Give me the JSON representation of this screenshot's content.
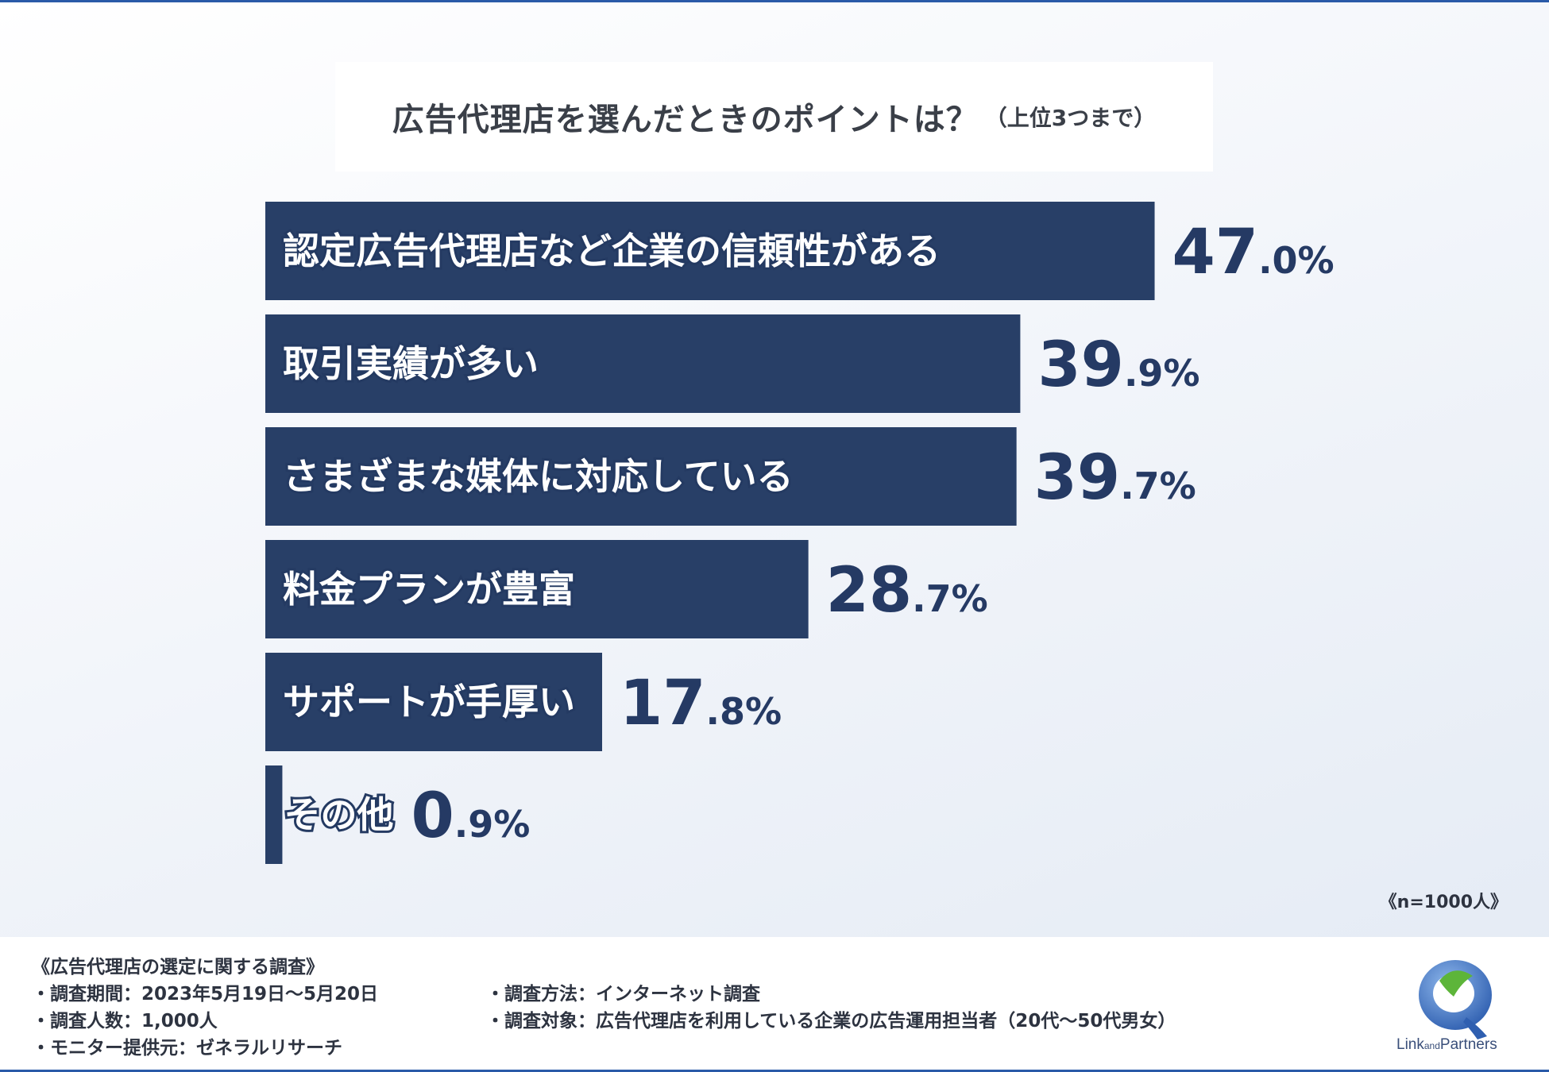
{
  "title": {
    "main": "広告代理店を選んだときのポイントは？",
    "sub": "（上位3つまで）"
  },
  "sample_note": "《n=1000人》",
  "colors": {
    "bar": "#283f67",
    "value_text": "#253a64",
    "accent_line": "#2a5aa8"
  },
  "chart_data": {
    "type": "bar",
    "orientation": "horizontal",
    "categories": [
      "認定広告代理店など企業の信頼性がある",
      "取引実績が多い",
      "さまざまな媒体に対応している",
      "料金プランが豊富",
      "サポートが手厚い",
      "その他"
    ],
    "values": [
      47.0,
      39.9,
      39.7,
      28.7,
      17.8,
      0.9
    ],
    "value_labels": [
      "47.0%",
      "39.9%",
      "39.7%",
      "28.7%",
      "17.8%",
      "0.9%"
    ],
    "unit": "%",
    "xlim": [
      0,
      100
    ],
    "grid": false,
    "legend": "none"
  },
  "footer": {
    "survey_title": "《広告代理店の選定に関する調査》",
    "period": "・調査期間：2023年5月19日～5月20日",
    "respondents": "・調査人数：1,000人",
    "provider": "・モニター提供元：ゼネラルリサーチ",
    "method": "・調査方法：インターネット調査",
    "target": "・調査対象：広告代理店を利用している企業の広告運用担当者（20代～50代男女）"
  },
  "logo": {
    "icon": "link-and-partners-logo-icon",
    "text_part1": "Link",
    "text_part2": "and",
    "text_part3": "Partners"
  }
}
